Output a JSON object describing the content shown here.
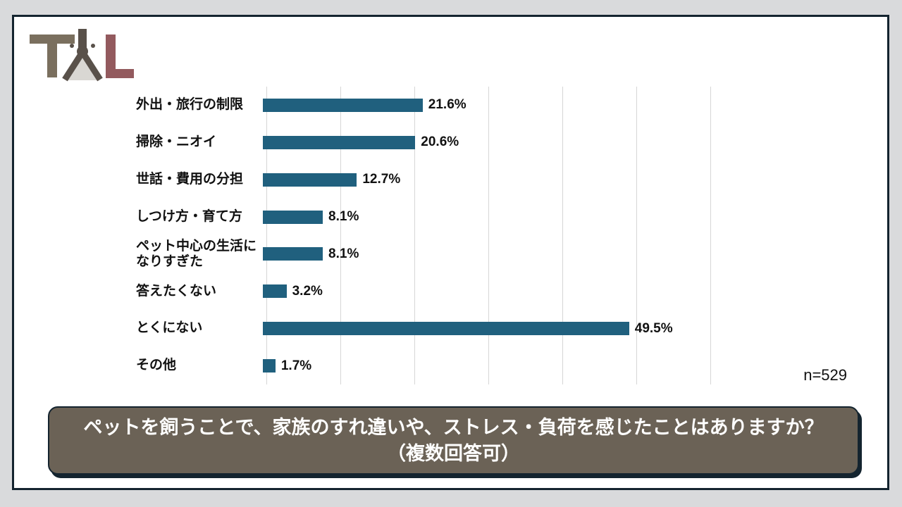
{
  "slide": {
    "page_background": "#d9dadc",
    "background": "#ffffff",
    "border_color": "#14242f"
  },
  "logo": {
    "label": "TL compass logo",
    "t_color": "#7a6f5e",
    "compass_color": "#59514a",
    "l_color": "#935a5e",
    "triangle_color": "#d9d7d3"
  },
  "chart_data": {
    "type": "bar",
    "orientation": "horizontal",
    "categories": [
      "外出・旅行の制限",
      "掃除・ニオイ",
      "世話・費用の分担",
      "しつけ方・育て方",
      "ペット中心の生活に\nなりすぎた",
      "答えたくない",
      "とくにない",
      "その他"
    ],
    "values": [
      21.6,
      20.6,
      12.7,
      8.1,
      8.1,
      3.2,
      49.5,
      1.7
    ],
    "value_labels": [
      "21.6%",
      "20.6%",
      "12.7%",
      "8.1%",
      "8.1%",
      "3.2%",
      "49.5%",
      "1.7%"
    ],
    "xlim": [
      0,
      60
    ],
    "gridline_interval_pct": 10,
    "grid": true,
    "legend": false,
    "bar_color": "#20607e",
    "gridline_color": "#d6d6d6",
    "value_text_color": "#111111",
    "sample_size": "n=529"
  },
  "question_banner": {
    "line1": "ペットを飼うことで、家族のすれ違いや、ストレス・負荷を感じたことはありますか？",
    "line2": "（複数回答可）",
    "background": "#6b6256",
    "border_color": "#14242f",
    "text_color": "#ffffff"
  }
}
